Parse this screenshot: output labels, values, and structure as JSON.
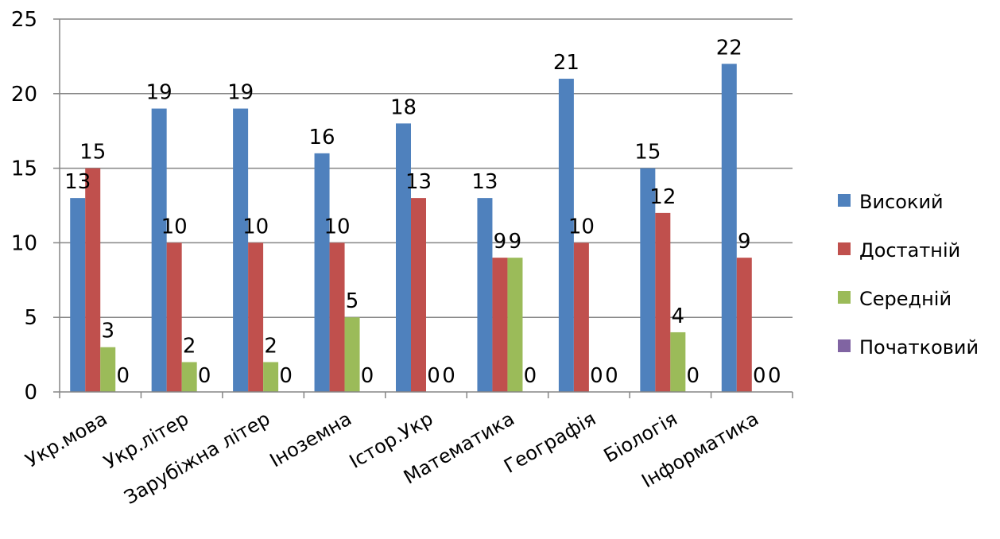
{
  "chart_data": {
    "type": "bar",
    "title": "",
    "xlabel": "",
    "ylabel": "",
    "ylim": [
      0,
      25
    ],
    "yticks": [
      0,
      5,
      10,
      15,
      20,
      25
    ],
    "grid": true,
    "legend_position": "right",
    "categories": [
      "Укр.мова",
      "Укр.літер",
      "Зарубіжна літер",
      "Іноземна",
      "Істор.Укр",
      "Математика",
      "Географія",
      "Біологія",
      "Інформатика"
    ],
    "series": [
      {
        "name": "Високий",
        "color": "#4F81BD",
        "values": [
          13,
          19,
          19,
          16,
          18,
          13,
          21,
          15,
          22
        ],
        "labels": [
          "13",
          "19",
          "19",
          "16",
          "18",
          "13",
          "21",
          "15",
          "22"
        ]
      },
      {
        "name": "Достатній",
        "color": "#C0504D",
        "values": [
          15,
          10,
          10,
          10,
          13,
          9,
          10,
          12,
          9
        ],
        "labels": [
          "15",
          "10",
          "10",
          "10",
          "13",
          "9",
          "10",
          "12",
          "9"
        ]
      },
      {
        "name": "Середній",
        "color": "#9BBB59",
        "values": [
          3,
          2,
          2,
          5,
          0,
          9,
          0,
          4,
          0
        ],
        "labels": [
          "3",
          "2",
          "2",
          "5",
          "0",
          "9",
          "0",
          "4",
          "0"
        ]
      },
      {
        "name": "Початковий",
        "color": "#8064A2",
        "values": [
          0,
          0,
          0,
          0,
          0,
          0,
          0,
          0,
          0
        ],
        "labels": [
          "0",
          "0",
          "0",
          "0",
          "0",
          "0",
          "0",
          "0",
          "0"
        ]
      }
    ]
  }
}
